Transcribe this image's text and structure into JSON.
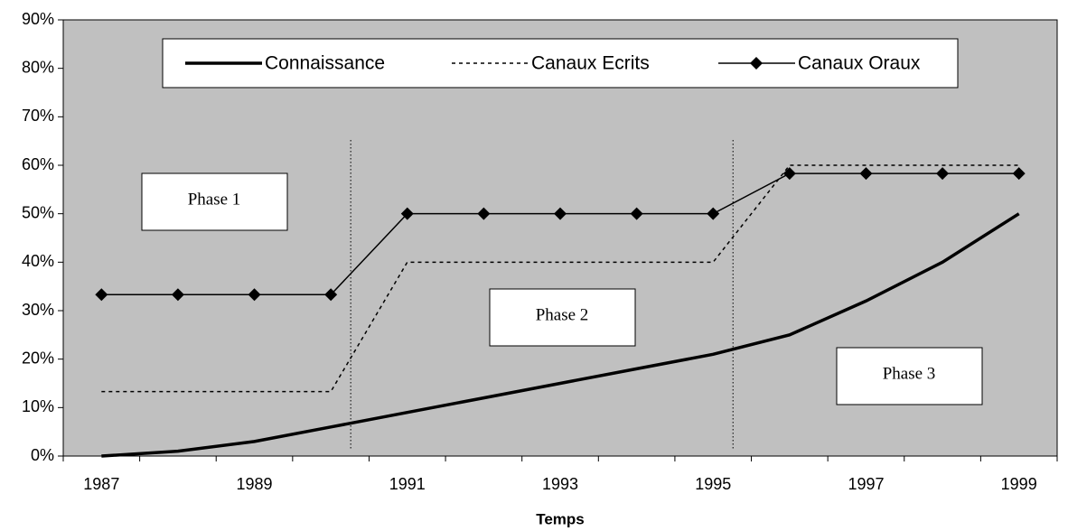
{
  "chart_data": {
    "type": "line",
    "x_label": "Temps",
    "categories": [
      "1987",
      null,
      "1989",
      null,
      "1991",
      null,
      "1993",
      null,
      "1995",
      null,
      "1997",
      null,
      "1999"
    ],
    "series": [
      {
        "name": "Connaissance",
        "color": "#000000",
        "style": "solid-thick",
        "values": [
          0,
          1,
          3,
          6,
          9,
          12,
          15,
          18,
          21,
          25,
          32,
          40,
          50
        ]
      },
      {
        "name": "Canaux Ecrits",
        "color": "#000000",
        "style": "dotted",
        "values": [
          13.3,
          13.3,
          13.3,
          13.3,
          40,
          40,
          40,
          40,
          40,
          60,
          60,
          60,
          60
        ]
      },
      {
        "name": "Canaux Oraux",
        "color": "#000000",
        "style": "solid-diamond",
        "values": [
          33.3,
          33.3,
          33.3,
          33.3,
          50,
          50,
          50,
          50,
          50,
          58.3,
          58.3,
          58.3,
          58.3
        ]
      }
    ],
    "ylim": [
      0,
      90
    ],
    "yticks": [
      {
        "value": 0,
        "label": "0%"
      },
      {
        "value": 10,
        "label": "10%"
      },
      {
        "value": 20,
        "label": "20%"
      },
      {
        "value": 30,
        "label": "30%"
      },
      {
        "value": 40,
        "label": "40%"
      },
      {
        "value": 50,
        "label": "50%"
      },
      {
        "value": 60,
        "label": "60%"
      },
      {
        "value": 70,
        "label": "70%"
      },
      {
        "value": 80,
        "label": "80%"
      },
      {
        "value": 90,
        "label": "90%"
      }
    ],
    "grid": false,
    "legend": "top",
    "annotations": [
      "Phase 1",
      "Phase 2",
      "Phase 3"
    ]
  }
}
